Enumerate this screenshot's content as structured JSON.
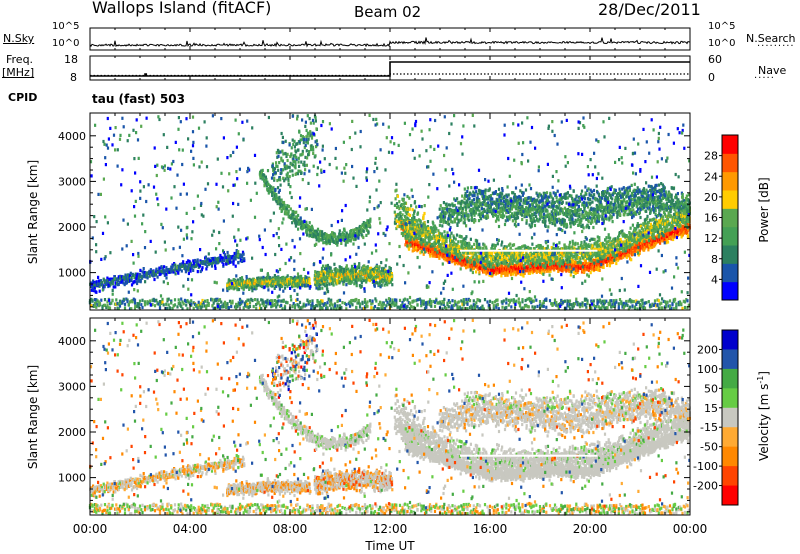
{
  "header": {
    "site": "Wallops Island (fitACF)",
    "beam": "Beam 02",
    "date": "28/Dec/2011"
  },
  "top_panels": {
    "nsky_label": "N.Sky",
    "nsearch_label": "N.Search",
    "noise_ticks": [
      "10^5",
      "10^0"
    ],
    "noise_ticks_right": [
      "10^5",
      "10^0"
    ],
    "freq_label_1": "Freq.",
    "freq_label_2": "[MHz]",
    "freq_ticks": [
      "18",
      "8"
    ],
    "nave_label": "Nave",
    "nave_ticks": [
      "60",
      "0"
    ],
    "cpid_label": "CPID",
    "cpid_value": "tau (fast) 503"
  },
  "colors": {
    "power_scale": [
      "#0000ff",
      "#1a55aa",
      "#2c8060",
      "#44a055",
      "#5aa850",
      "#ffcc00",
      "#ff9900",
      "#ff5500",
      "#ff0000"
    ],
    "velocity_scale": [
      "#ff0000",
      "#ff4400",
      "#ff8800",
      "#ffaa33",
      "#c8c8c0",
      "#66cc44",
      "#44aa44",
      "#2255aa",
      "#0000cc"
    ]
  },
  "chart_data": [
    {
      "type": "heatmap",
      "quantity": "Power",
      "xlabel": "Time UT",
      "ylabel": "Slant Range [km]",
      "x_ticks": [
        "00:00",
        "04:00",
        "08:00",
        "12:00",
        "16:00",
        "20:00",
        "00:00"
      ],
      "x_range_hours": [
        0,
        24
      ],
      "y_ticks": [
        1000,
        2000,
        3000,
        4000
      ],
      "ylim": [
        180,
        4500
      ],
      "colorbar_label": "Power [dB]",
      "colorbar_ticks": [
        4,
        8,
        12,
        16,
        20,
        24,
        28
      ],
      "colorbar_range": [
        0,
        32
      ]
    },
    {
      "type": "heatmap",
      "quantity": "Velocity",
      "xlabel": "Time UT",
      "ylabel": "Slant Range [km]",
      "x_ticks": [
        "00:00",
        "04:00",
        "08:00",
        "12:00",
        "16:00",
        "20:00",
        "00:00"
      ],
      "x_range_hours": [
        0,
        24
      ],
      "y_ticks": [
        1000,
        2000,
        3000,
        4000
      ],
      "ylim": [
        180,
        4500
      ],
      "colorbar_label": "Velocity [m s",
      "colorbar_unit_sup": "-1",
      "colorbar_unit_close": "]",
      "colorbar_ticks": [
        200,
        100,
        50,
        15,
        -15,
        -50,
        -100,
        -200
      ]
    }
  ]
}
